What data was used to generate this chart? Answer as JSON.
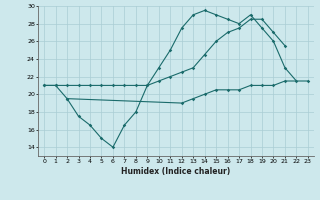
{
  "xlabel": "Humidex (Indice chaleur)",
  "bg_color": "#cde8ec",
  "grid_color": "#aacdd4",
  "line_color": "#1a6b6b",
  "xlim": [
    -0.5,
    23.5
  ],
  "ylim": [
    13,
    30
  ],
  "xticks": [
    0,
    1,
    2,
    3,
    4,
    5,
    6,
    7,
    8,
    9,
    10,
    11,
    12,
    13,
    14,
    15,
    16,
    17,
    18,
    19,
    20,
    21,
    22,
    23
  ],
  "yticks": [
    14,
    16,
    18,
    20,
    22,
    24,
    26,
    28,
    30
  ],
  "l1x": [
    0,
    1,
    2,
    3,
    4,
    5,
    6,
    7,
    8,
    9,
    10,
    11,
    12,
    13,
    14,
    15,
    16,
    17,
    18,
    19,
    20,
    21,
    22
  ],
  "l1y": [
    21.0,
    21.0,
    19.5,
    17.5,
    16.5,
    15.0,
    14.0,
    16.5,
    18.0,
    21.0,
    23.0,
    25.0,
    27.5,
    29.0,
    29.5,
    29.0,
    28.5,
    28.0,
    29.0,
    27.5,
    26.0,
    23.0,
    21.5
  ],
  "l2x": [
    0,
    1,
    2,
    3,
    4,
    5,
    6,
    7,
    8,
    9,
    10,
    11,
    12,
    13,
    14,
    15,
    16,
    17,
    18,
    19,
    20,
    21
  ],
  "l2y": [
    21.0,
    21.0,
    21.0,
    21.0,
    21.0,
    21.0,
    21.0,
    21.0,
    21.0,
    21.0,
    21.5,
    22.0,
    22.5,
    23.0,
    24.5,
    26.0,
    27.0,
    27.5,
    28.5,
    28.5,
    27.0,
    25.5
  ],
  "l3x": [
    2,
    12,
    13,
    14,
    15,
    16,
    17,
    18,
    19,
    20,
    21,
    23
  ],
  "l3y": [
    19.5,
    19.0,
    19.5,
    20.0,
    20.5,
    20.5,
    20.5,
    21.0,
    21.0,
    21.0,
    21.5,
    21.5
  ]
}
